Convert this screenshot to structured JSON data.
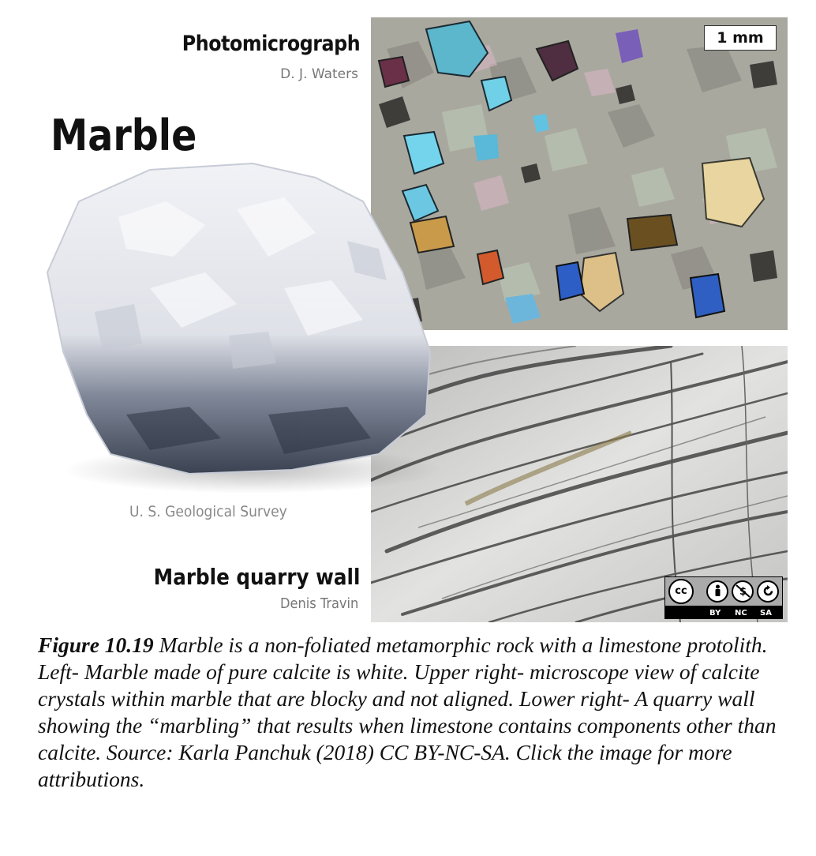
{
  "labels": {
    "photomicrograph_title": "Photomicrograph",
    "photomicrograph_credit": "D. J. Waters",
    "marble_title": "Marble",
    "rock_credit": "U. S. Geological Survey",
    "quarry_title": "Marble quarry wall",
    "quarry_credit": "Denis Travin",
    "scale_bar": "1 mm"
  },
  "license": {
    "cc_mark": "cc",
    "terms": [
      "BY",
      "NC",
      "SA"
    ]
  },
  "caption": {
    "figure_number": "Figure 10.19",
    "text": " Marble is a non-foliated metamorphic rock with a limestone protolith. Left- Marble made of pure calcite is white. Upper right- microscope view of calcite crystals within marble that are blocky and not aligned. Lower right- A quarry wall showing the “marbling” that results when limestone contains components other than calcite. Source: Karla Panchuk (2018) CC BY-NC-SA. Click the image for more attributions."
  },
  "colors": {
    "micro_base": "#a9a89f",
    "crystal_cyan": "#63c8e0",
    "crystal_blue": "#2f5fc2",
    "crystal_yellow": "#e6d19a",
    "crystal_tan": "#c99a4a",
    "crystal_brown": "#6a5020",
    "crystal_orange": "#d35a2c",
    "quarry_base": "#d5d5d3",
    "vein_dark": "#444444"
  }
}
